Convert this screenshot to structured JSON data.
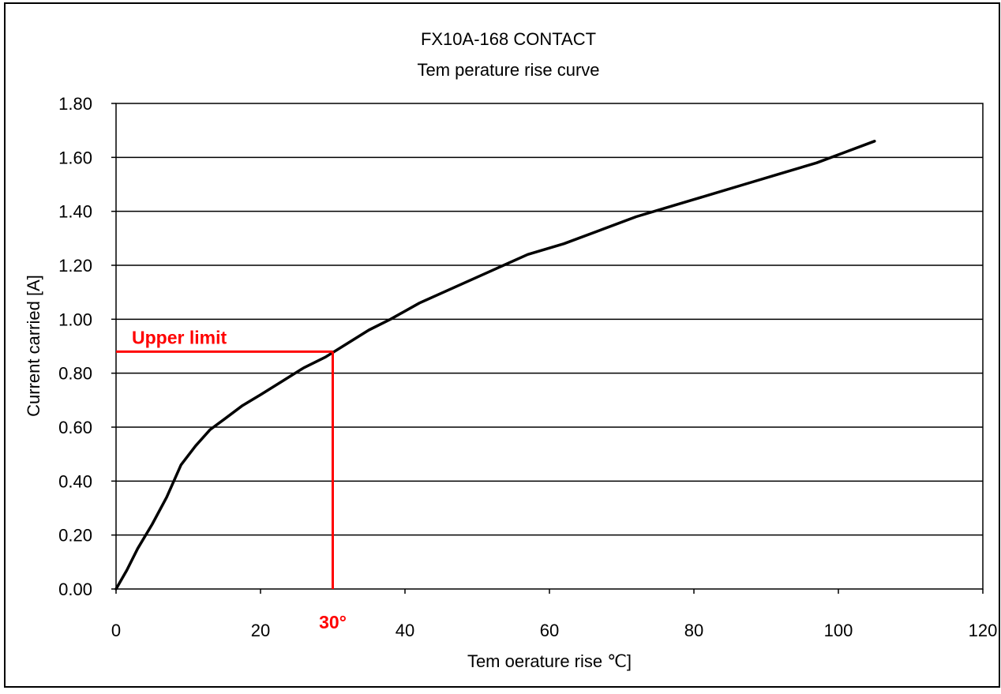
{
  "chart_data": {
    "type": "line",
    "title": "FX10A-168 CONTACT",
    "subtitle": "Tem perature rise curve",
    "xlabel": "Tem oerature rise ℃]",
    "ylabel": "Current carried [A]",
    "xlim": [
      0,
      120
    ],
    "ylim": [
      0,
      1.8
    ],
    "x_ticks": [
      0,
      20,
      40,
      60,
      80,
      100,
      120
    ],
    "x_tick_labels": [
      "0",
      "20",
      "40",
      "60",
      "80",
      "100",
      "120"
    ],
    "y_ticks": [
      0,
      0.2,
      0.4,
      0.6,
      0.8,
      1.0,
      1.2,
      1.4,
      1.6,
      1.8
    ],
    "y_tick_labels": [
      "0.00",
      "0.20",
      "0.40",
      "0.60",
      "0.80",
      "1.00",
      "1.20",
      "1.40",
      "1.60",
      "1.80"
    ],
    "grid": "horizontal",
    "series": [
      {
        "color": "#000000",
        "x": [
          0,
          1.5,
          3,
          5,
          7,
          9,
          11,
          13,
          15,
          17.5,
          20,
          23,
          26,
          29,
          32,
          35,
          38,
          42,
          47,
          52,
          57,
          62,
          67,
          72,
          77,
          82,
          87,
          92,
          97,
          101,
          105
        ],
        "y": [
          0,
          0.07,
          0.15,
          0.24,
          0.34,
          0.46,
          0.53,
          0.59,
          0.63,
          0.68,
          0.72,
          0.77,
          0.82,
          0.86,
          0.91,
          0.96,
          1.0,
          1.06,
          1.12,
          1.18,
          1.24,
          1.28,
          1.33,
          1.38,
          1.42,
          1.46,
          1.5,
          1.54,
          1.58,
          1.62,
          1.66
        ]
      }
    ],
    "annotations": {
      "upper_limit_label": "Upper limit",
      "x_marker_label": "30°",
      "marker_x": 30,
      "marker_y": 0.88,
      "color": "#ff0000"
    }
  }
}
